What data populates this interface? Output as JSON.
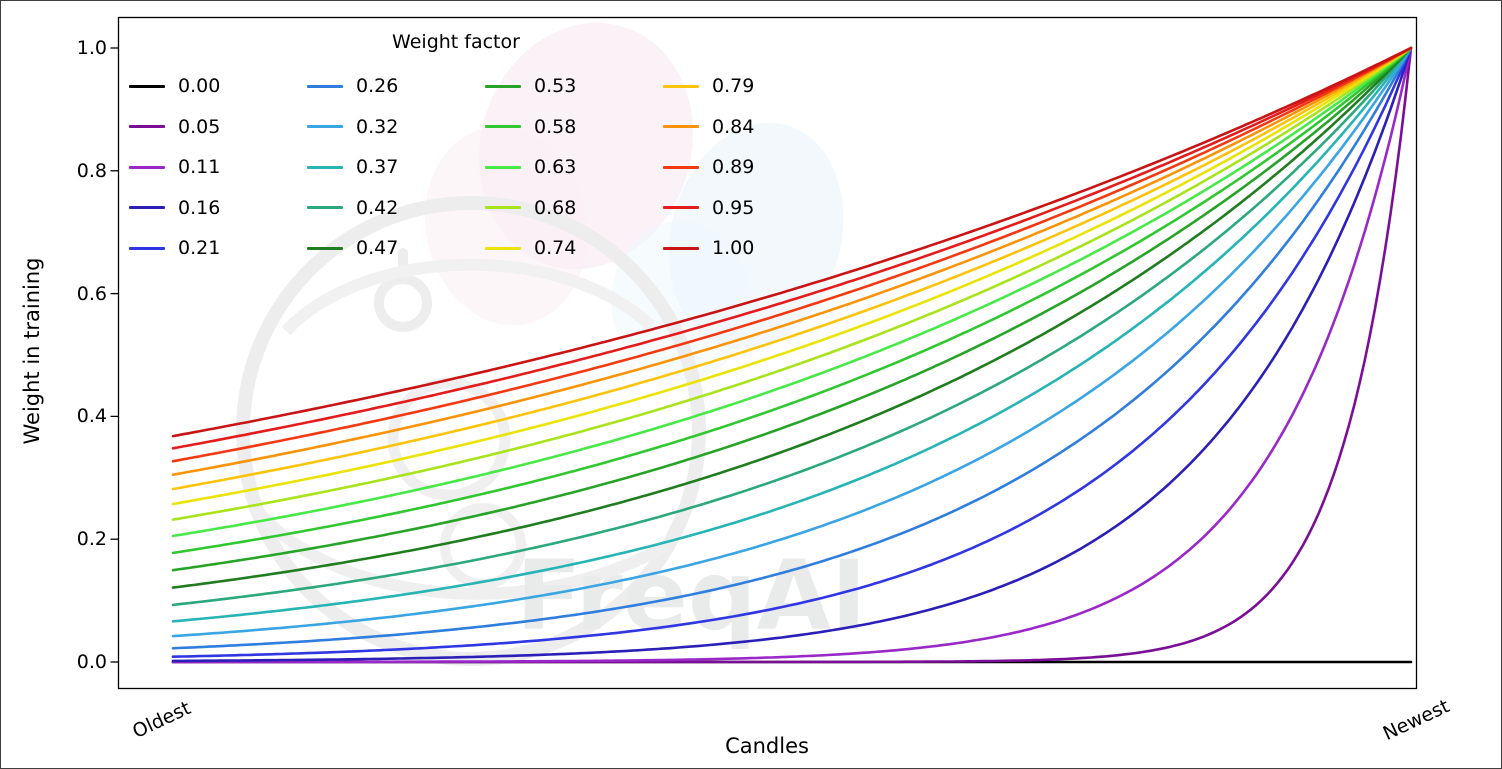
{
  "figure": {
    "background": "#ffffff",
    "border_color": "#3f3f3f",
    "watermark_text": "FreqAI"
  },
  "chart_data": {
    "type": "line",
    "title": "",
    "xlabel": "Candles",
    "ylabel": "Weight in training",
    "xticklabels": [
      "Oldest",
      "Newest"
    ],
    "ytick_values": [
      0.0,
      0.2,
      0.4,
      0.6,
      0.8,
      1.0
    ],
    "ytick_labels": [
      "0.0",
      "0.2",
      "0.4",
      "0.6",
      "0.8",
      "1.0"
    ],
    "ylim": [
      0,
      1
    ],
    "x_domain": "candle age, t = 0 at Oldest to t = 1 at Newest",
    "formula": "weight(t) = exp(-(1 - t) / factor); factor = 0 gives zero weight for all candles",
    "grid": false,
    "legend": {
      "title": "Weight factor",
      "position": "upper-left",
      "ncol": 4,
      "nrow": 5,
      "order": "column-major"
    },
    "series": [
      {
        "label": "0.00",
        "factor": 0.0,
        "color": "#000000"
      },
      {
        "label": "0.05",
        "factor": 0.0526,
        "color": "#7b0e96"
      },
      {
        "label": "0.11",
        "factor": 0.1053,
        "color": "#9a28c9"
      },
      {
        "label": "0.16",
        "factor": 0.1579,
        "color": "#2b1fb8"
      },
      {
        "label": "0.21",
        "factor": 0.2105,
        "color": "#3136e3"
      },
      {
        "label": "0.26",
        "factor": 0.2632,
        "color": "#2f7ede"
      },
      {
        "label": "0.32",
        "factor": 0.3158,
        "color": "#3aa5e3"
      },
      {
        "label": "0.37",
        "factor": 0.3684,
        "color": "#27b4b4"
      },
      {
        "label": "0.42",
        "factor": 0.4211,
        "color": "#2ca97c"
      },
      {
        "label": "0.47",
        "factor": 0.4737,
        "color": "#1f7d1f"
      },
      {
        "label": "0.53",
        "factor": 0.5263,
        "color": "#27a427"
      },
      {
        "label": "0.58",
        "factor": 0.5789,
        "color": "#30c730"
      },
      {
        "label": "0.63",
        "factor": 0.6316,
        "color": "#47e847"
      },
      {
        "label": "0.68",
        "factor": 0.6842,
        "color": "#a9e31c"
      },
      {
        "label": "0.74",
        "factor": 0.7368,
        "color": "#eae305"
      },
      {
        "label": "0.79",
        "factor": 0.7895,
        "color": "#fcc30c"
      },
      {
        "label": "0.84",
        "factor": 0.8421,
        "color": "#fb9309"
      },
      {
        "label": "0.89",
        "factor": 0.8947,
        "color": "#f23a12"
      },
      {
        "label": "0.95",
        "factor": 0.9474,
        "color": "#e31c1c"
      },
      {
        "label": "1.00",
        "factor": 1.0,
        "color": "#c81414"
      }
    ]
  }
}
